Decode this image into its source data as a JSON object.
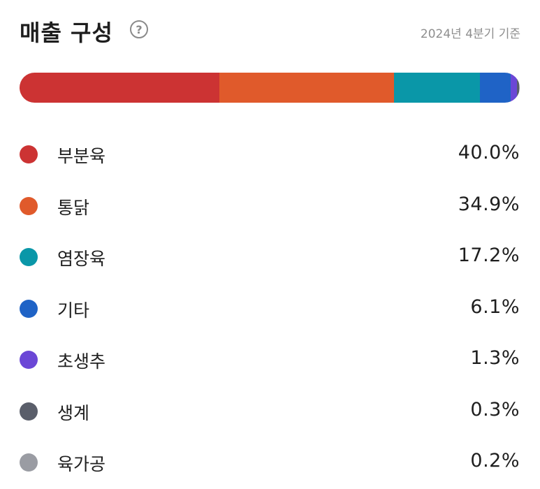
{
  "header": {
    "title": "매출 구성",
    "help_symbol": "?",
    "subtitle": "2024년 4분기 기준"
  },
  "chart_data": {
    "type": "bar",
    "stacked": true,
    "orientation": "horizontal",
    "unit": "%",
    "legend_position": "below",
    "grid": false,
    "series": [
      {
        "name": "부분육",
        "value": 40.0,
        "label": "40.0%",
        "color": "#cc3333"
      },
      {
        "name": "통닭",
        "value": 34.9,
        "label": "34.9%",
        "color": "#e05a2b"
      },
      {
        "name": "염장육",
        "value": 17.2,
        "label": "17.2%",
        "color": "#0a97a8"
      },
      {
        "name": "기타",
        "value": 6.1,
        "label": "6.1%",
        "color": "#1f63c6"
      },
      {
        "name": "초생추",
        "value": 1.3,
        "label": "1.3%",
        "color": "#6b47d6"
      },
      {
        "name": "생계",
        "value": 0.3,
        "label": "0.3%",
        "color": "#5a5e6a"
      },
      {
        "name": "육가공",
        "value": 0.2,
        "label": "0.2%",
        "color": "#9a9ca3"
      }
    ]
  }
}
